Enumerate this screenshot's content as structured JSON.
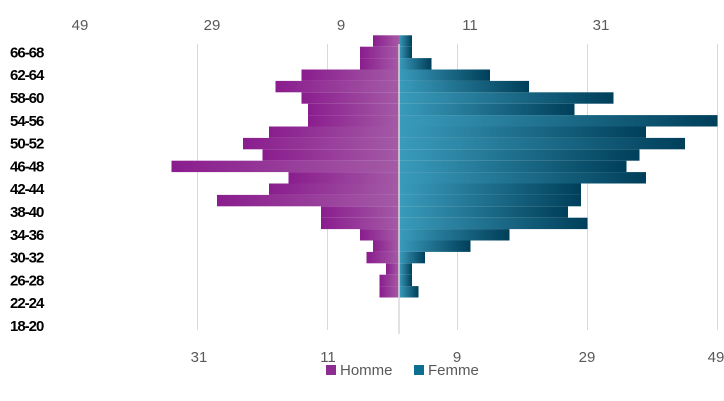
{
  "chart_data": {
    "type": "bar",
    "orientation": "horizontal",
    "style": "population-pyramid",
    "categories": [
      "18-20",
      "22-24",
      "26-28",
      "30-32",
      "34-36",
      "38-40",
      "42-44",
      "46-48",
      "50-52",
      "54-56",
      "58-60",
      "62-64",
      "66-68"
    ],
    "rows": [
      {
        "label": "18-20",
        "homme": [
          0,
          0
        ],
        "femme": [
          0,
          0
        ]
      },
      {
        "label": "22-24",
        "homme": [
          0,
          3
        ],
        "femme": [
          0,
          3
        ]
      },
      {
        "label": "26-28",
        "homme": [
          3,
          2
        ],
        "femme": [
          2,
          2
        ]
      },
      {
        "label": "30-32",
        "homme": [
          5,
          4
        ],
        "femme": [
          4,
          11
        ]
      },
      {
        "label": "34-36",
        "homme": [
          6,
          12
        ],
        "femme": [
          17,
          29
        ]
      },
      {
        "label": "38-40",
        "homme": [
          12,
          28
        ],
        "femme": [
          26,
          28
        ]
      },
      {
        "label": "42-44",
        "homme": [
          20,
          17
        ],
        "femme": [
          28,
          38
        ]
      },
      {
        "label": "46-48",
        "homme": [
          35,
          21
        ],
        "femme": [
          35,
          37
        ]
      },
      {
        "label": "50-52",
        "homme": [
          24,
          20
        ],
        "femme": [
          44,
          38
        ]
      },
      {
        "label": "54-56",
        "homme": [
          14,
          14
        ],
        "femme": [
          49,
          27
        ]
      },
      {
        "label": "58-60",
        "homme": [
          15,
          19
        ],
        "femme": [
          33,
          20
        ]
      },
      {
        "label": "62-64",
        "homme": [
          15,
          6
        ],
        "femme": [
          14,
          5
        ]
      },
      {
        "label": "66-68",
        "homme": [
          6,
          4
        ],
        "femme": [
          2,
          2
        ]
      }
    ],
    "series": [
      {
        "name": "Homme",
        "color": "#8e2d91"
      },
      {
        "name": "Femme",
        "color": "#0d6f8f"
      }
    ],
    "top_axis_ticks": [
      "49",
      "29",
      "9",
      "11",
      "31"
    ],
    "bottom_axis_ticks": [
      "31",
      "11",
      "9",
      "29",
      "49"
    ],
    "xlim": [
      -35,
      49
    ],
    "grid": true,
    "legend_position": "bottom"
  }
}
